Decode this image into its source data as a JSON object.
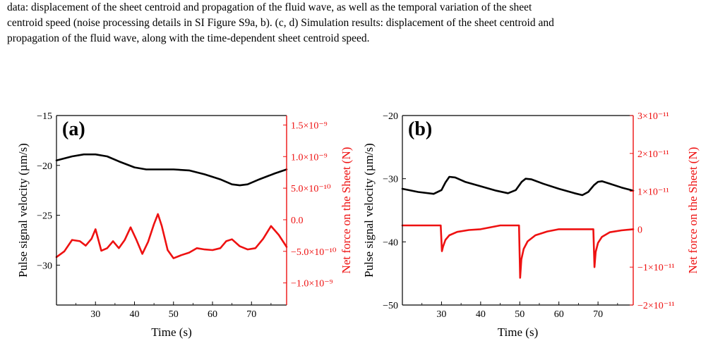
{
  "caption": {
    "line1": "data: displacement of the sheet centroid and propagation of the fluid wave, as well as the temporal variation of the sheet",
    "line2": "centroid speed (noise processing details in SI Figure S9a, b). (c, d) Simulation results: displacement of the sheet centroid and",
    "line3": "propagation of the fluid wave, along with the time-dependent sheet centroid speed."
  },
  "colors": {
    "left_series": "#000000",
    "right_series": "#ee1111"
  },
  "chart_data": [
    {
      "type": "line",
      "panel_label": "(a)",
      "xlabel": "Time (s)",
      "ylabel_left": "Pulse signal velocity (µm/s)",
      "ylabel_right": "Net force on the Sheet (N)",
      "xlim": [
        20,
        79
      ],
      "x_ticks": [
        30,
        40,
        50,
        60,
        70
      ],
      "x_tick_labels": [
        "30",
        "40",
        "50",
        "60",
        "70"
      ],
      "ylim_left": [
        -34,
        -15
      ],
      "y_ticks_left": [
        -30,
        -25,
        -20,
        -15
      ],
      "y_tick_labels_left": [
        "−30",
        "−25",
        "−20",
        "−15"
      ],
      "ylim_right": [
        -1.35e-09,
        1.65e-09
      ],
      "y_ticks_right": [
        -1e-09,
        -5e-10,
        0,
        5e-10,
        1e-09,
        1.5e-09
      ],
      "y_tick_labels_right": [
        "−1.0×10⁻⁹",
        "−5.0×10⁻¹⁰",
        "0.0",
        "5.0×10⁻¹⁰",
        "1.0×10⁻⁹",
        "1.5×10⁻⁹"
      ],
      "series": [
        {
          "axis": "left",
          "x": [
            20,
            24,
            27,
            30,
            33,
            36,
            40,
            43,
            46,
            50,
            54,
            58,
            62,
            65,
            67,
            69,
            72,
            76,
            79
          ],
          "y": [
            -19.5,
            -19.1,
            -18.9,
            -18.9,
            -19.1,
            -19.6,
            -20.2,
            -20.4,
            -20.4,
            -20.4,
            -20.5,
            -20.9,
            -21.4,
            -21.9,
            -22.0,
            -21.9,
            -21.4,
            -20.8,
            -20.4
          ]
        },
        {
          "axis": "right",
          "x": [
            20,
            22,
            24,
            26,
            27.5,
            29,
            30,
            31.5,
            33,
            34.5,
            36,
            37.5,
            39,
            40.5,
            42,
            43.5,
            45,
            46,
            47,
            48.5,
            50,
            52,
            54,
            56,
            58,
            60,
            62,
            63.5,
            65,
            67,
            69,
            71,
            73,
            75,
            77,
            79
          ],
          "y": [
            -5.9e-10,
            -5e-10,
            -3.2e-10,
            -3.4e-10,
            -4.1e-10,
            -3e-10,
            -1.5e-10,
            -4.9e-10,
            -4.5e-10,
            -3.4e-10,
            -4.5e-10,
            -3.2e-10,
            -1.2e-10,
            -3.2e-10,
            -5.4e-10,
            -3.5e-10,
            -7e-11,
            9e-11,
            -1e-10,
            -4.8e-10,
            -6.1e-10,
            -5.6e-10,
            -5.2e-10,
            -4.5e-10,
            -4.7e-10,
            -4.8e-10,
            -4.5e-10,
            -3.4e-10,
            -3.1e-10,
            -4.2e-10,
            -4.7e-10,
            -4.5e-10,
            -3e-10,
            -1e-10,
            -2.4e-10,
            -4.3e-10
          ]
        }
      ]
    },
    {
      "type": "line",
      "panel_label": "(b)",
      "xlabel": "Time (s)",
      "ylabel_left": "Pulse signal velocity (µm/s)",
      "ylabel_right": "Net force on the Sheet (N)",
      "xlim": [
        20,
        79
      ],
      "x_ticks": [
        30,
        40,
        50,
        60,
        70
      ],
      "x_tick_labels": [
        "30",
        "40",
        "50",
        "60",
        "70"
      ],
      "ylim_left": [
        -50,
        -20
      ],
      "y_ticks_left": [
        -50,
        -40,
        -30,
        -20
      ],
      "y_tick_labels_left": [
        "−50",
        "−40",
        "−30",
        "−20"
      ],
      "ylim_right": [
        -2e-11,
        3e-11
      ],
      "y_ticks_right": [
        -2e-11,
        -1e-11,
        0,
        1e-11,
        2e-11,
        3e-11
      ],
      "y_tick_labels_right": [
        "−2×10⁻¹¹",
        "−1×10⁻¹¹",
        "0",
        "1×10⁻¹¹",
        "2×10⁻¹¹",
        "3×10⁻¹¹"
      ],
      "series": [
        {
          "axis": "left",
          "x": [
            20,
            24,
            28,
            30,
            31,
            32,
            33.5,
            36,
            40,
            44,
            47,
            49,
            50.5,
            51.5,
            53,
            56,
            60,
            64,
            66,
            67.5,
            69,
            70,
            71,
            73,
            76,
            79
          ],
          "y": [
            -31.6,
            -32.1,
            -32.4,
            -31.8,
            -30.6,
            -29.7,
            -29.8,
            -30.5,
            -31.2,
            -31.9,
            -32.3,
            -31.8,
            -30.5,
            -30.0,
            -30.1,
            -30.8,
            -31.6,
            -32.3,
            -32.6,
            -32.1,
            -31.0,
            -30.5,
            -30.4,
            -30.8,
            -31.4,
            -31.9
          ]
        },
        {
          "axis": "right",
          "x": [
            20,
            25,
            29.8,
            30.1,
            30.4,
            31,
            32,
            34,
            37,
            40,
            45,
            49.8,
            50.1,
            50.4,
            51,
            52,
            54,
            57,
            60,
            65,
            68.8,
            69.1,
            69.4,
            70,
            71,
            73,
            76,
            79
          ],
          "y": [
            1e-12,
            1e-12,
            1e-12,
            -5.8e-12,
            -4.6e-12,
            -2.8e-12,
            -1.6e-12,
            -7e-13,
            -2e-13,
            0,
            1e-12,
            1e-12,
            -1.28e-11,
            -8e-12,
            -5.2e-12,
            -3.2e-12,
            -1.6e-12,
            -6e-13,
            0,
            0,
            0,
            -1e-11,
            -6e-12,
            -3.6e-12,
            -2e-12,
            -8e-13,
            -3e-13,
            0
          ]
        }
      ]
    }
  ]
}
